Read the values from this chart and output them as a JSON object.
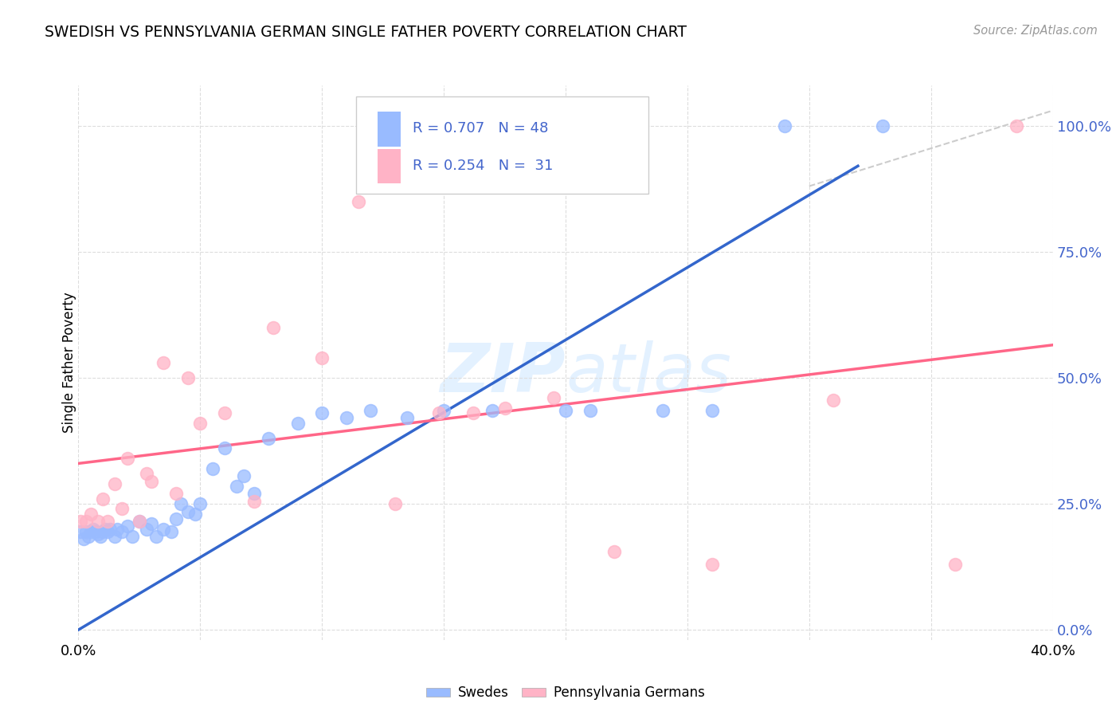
{
  "title": "SWEDISH VS PENNSYLVANIA GERMAN SINGLE FATHER POVERTY CORRELATION CHART",
  "source": "Source: ZipAtlas.com",
  "ylabel": "Single Father Poverty",
  "ytick_labels": [
    "0.0%",
    "25.0%",
    "50.0%",
    "75.0%",
    "100.0%"
  ],
  "ytick_values": [
    0.0,
    0.25,
    0.5,
    0.75,
    1.0
  ],
  "xlim": [
    0,
    0.4
  ],
  "ylim": [
    -0.02,
    1.08
  ],
  "legend_label1": "Swedes",
  "legend_label2": "Pennsylvania Germans",
  "R1": 0.707,
  "N1": 48,
  "R2": 0.254,
  "N2": 31,
  "color_blue": "#99BBFF",
  "color_pink": "#FFB3C6",
  "color_line_blue": "#3366CC",
  "color_line_pink": "#FF6688",
  "color_blue_text": "#4466CC",
  "watermark_color": "#BBDDFF",
  "watermark_alpha": 0.4,
  "blue_line_x": [
    0.0,
    0.32
  ],
  "blue_line_y": [
    0.0,
    0.92
  ],
  "pink_line_x": [
    0.0,
    0.4
  ],
  "pink_line_y": [
    0.33,
    0.565
  ],
  "dash_line_x": [
    0.3,
    0.4
  ],
  "dash_line_y": [
    0.88,
    1.03
  ],
  "swedes_x": [
    0.001,
    0.002,
    0.003,
    0.004,
    0.005,
    0.006,
    0.007,
    0.008,
    0.009,
    0.01,
    0.011,
    0.012,
    0.013,
    0.015,
    0.016,
    0.018,
    0.02,
    0.022,
    0.025,
    0.028,
    0.03,
    0.032,
    0.035,
    0.038,
    0.04,
    0.042,
    0.045,
    0.048,
    0.05,
    0.055,
    0.06,
    0.065,
    0.068,
    0.072,
    0.078,
    0.09,
    0.1,
    0.11,
    0.12,
    0.135,
    0.15,
    0.17,
    0.2,
    0.21,
    0.24,
    0.26,
    0.29,
    0.33
  ],
  "swedes_y": [
    0.195,
    0.18,
    0.195,
    0.185,
    0.195,
    0.2,
    0.195,
    0.19,
    0.185,
    0.195,
    0.2,
    0.195,
    0.2,
    0.185,
    0.2,
    0.195,
    0.205,
    0.185,
    0.215,
    0.2,
    0.21,
    0.185,
    0.2,
    0.195,
    0.22,
    0.25,
    0.235,
    0.23,
    0.25,
    0.32,
    0.36,
    0.285,
    0.305,
    0.27,
    0.38,
    0.41,
    0.43,
    0.42,
    0.435,
    0.42,
    0.435,
    0.435,
    0.435,
    0.435,
    0.435,
    0.435,
    1.0,
    1.0
  ],
  "penn_x": [
    0.001,
    0.003,
    0.005,
    0.008,
    0.01,
    0.012,
    0.015,
    0.018,
    0.02,
    0.025,
    0.028,
    0.03,
    0.035,
    0.04,
    0.045,
    0.05,
    0.06,
    0.072,
    0.08,
    0.1,
    0.115,
    0.13,
    0.148,
    0.162,
    0.175,
    0.195,
    0.22,
    0.26,
    0.31,
    0.36,
    0.385
  ],
  "penn_y": [
    0.215,
    0.215,
    0.23,
    0.215,
    0.26,
    0.215,
    0.29,
    0.24,
    0.34,
    0.215,
    0.31,
    0.295,
    0.53,
    0.27,
    0.5,
    0.41,
    0.43,
    0.255,
    0.6,
    0.54,
    0.85,
    0.25,
    0.43,
    0.43,
    0.44,
    0.46,
    0.155,
    0.13,
    0.455,
    0.13,
    1.0
  ]
}
